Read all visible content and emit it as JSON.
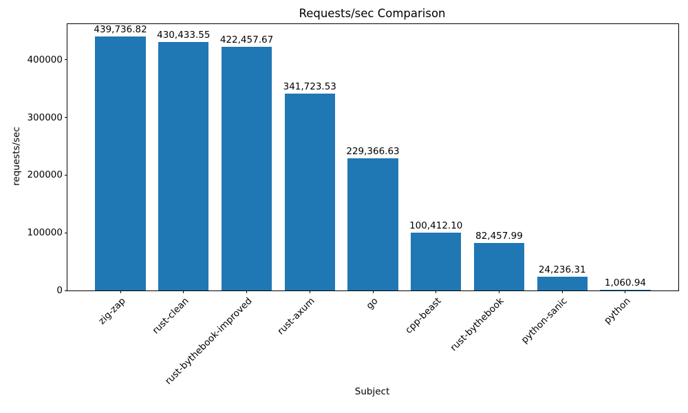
{
  "chart_data": {
    "type": "bar",
    "title": "Requests/sec Comparison",
    "xlabel": "Subject",
    "ylabel": "requests/sec",
    "categories": [
      "zig-zap",
      "rust-clean",
      "rust-bythebook-improved",
      "rust-axum",
      "go",
      "cpp-beast",
      "rust-bythebook",
      "python-sanic",
      "python"
    ],
    "values": [
      439736.82,
      430433.55,
      422457.67,
      341723.53,
      229366.63,
      100412.1,
      82457.99,
      24236.31,
      1060.94
    ],
    "value_labels": [
      "439,736.82",
      "430,433.55",
      "422,457.67",
      "341,723.53",
      "229,366.63",
      "100,412.10",
      "82,457.99",
      "24,236.31",
      "1,060.94"
    ],
    "yticks": [
      0,
      100000,
      200000,
      300000,
      400000
    ],
    "ylim": [
      0,
      461724
    ],
    "bar_color": "#1f77b4",
    "grid": false,
    "legend": null
  }
}
